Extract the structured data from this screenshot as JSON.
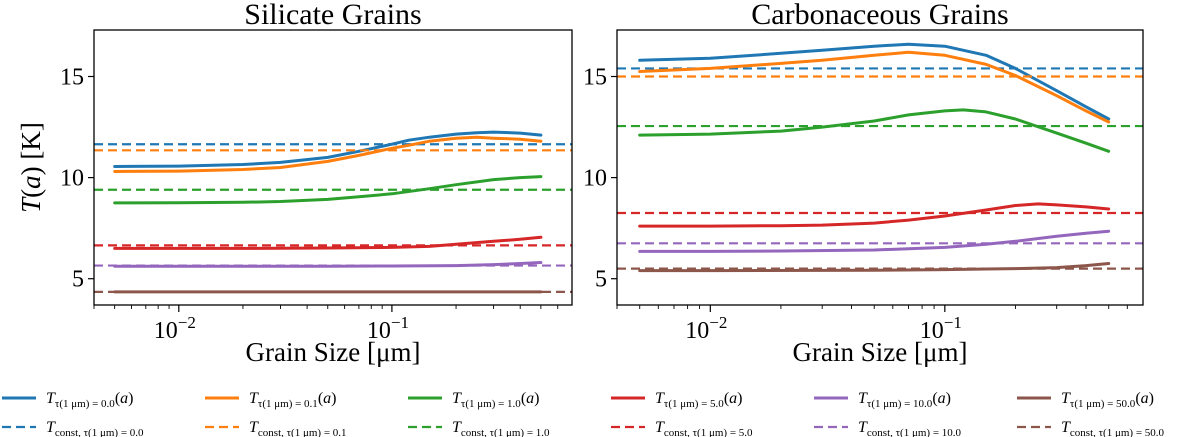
{
  "series_colors": [
    "#1f77b4",
    "#ff7f0e",
    "#2ca02c",
    "#d62728",
    "#9467bd",
    "#8c564b"
  ],
  "chart_data": [
    {
      "type": "line",
      "title": "Silicate Grains",
      "xlabel": "Grain Size [μm]",
      "ylabel": "T(a) [K]",
      "xscale": "log",
      "xlim": [
        0.004,
        0.7
      ],
      "ylim": [
        3.7,
        17.3
      ],
      "yticks": [
        5,
        10,
        15
      ],
      "xticks": [
        0.01,
        0.1
      ],
      "xtick_labels": [
        {
          "base": "10",
          "exp": "−2"
        },
        {
          "base": "10",
          "exp": "−1"
        }
      ],
      "grid": false,
      "series": [
        {
          "tau": "0.0",
          "x": [
            0.005,
            0.01,
            0.02,
            0.03,
            0.05,
            0.07,
            0.1,
            0.12,
            0.15,
            0.2,
            0.25,
            0.3,
            0.4,
            0.5
          ],
          "y": [
            10.55,
            10.57,
            10.65,
            10.75,
            11.0,
            11.3,
            11.65,
            11.85,
            12.0,
            12.15,
            12.22,
            12.25,
            12.2,
            12.1
          ],
          "const": 11.65
        },
        {
          "tau": "0.1",
          "x": [
            0.005,
            0.01,
            0.02,
            0.03,
            0.05,
            0.07,
            0.1,
            0.12,
            0.15,
            0.2,
            0.25,
            0.3,
            0.4,
            0.5
          ],
          "y": [
            10.3,
            10.32,
            10.4,
            10.5,
            10.8,
            11.1,
            11.45,
            11.6,
            11.8,
            11.95,
            12.0,
            11.95,
            11.9,
            11.8
          ],
          "const": 11.35
        },
        {
          "tau": "1.0",
          "x": [
            0.005,
            0.01,
            0.02,
            0.03,
            0.05,
            0.07,
            0.1,
            0.15,
            0.2,
            0.3,
            0.4,
            0.5
          ],
          "y": [
            8.75,
            8.76,
            8.78,
            8.82,
            8.92,
            9.05,
            9.2,
            9.45,
            9.65,
            9.9,
            10.0,
            10.05
          ],
          "const": 9.4
        },
        {
          "tau": "5.0",
          "x": [
            0.005,
            0.01,
            0.02,
            0.05,
            0.1,
            0.15,
            0.2,
            0.3,
            0.4,
            0.5
          ],
          "y": [
            6.5,
            6.5,
            6.5,
            6.52,
            6.55,
            6.6,
            6.7,
            6.85,
            6.95,
            7.05
          ],
          "const": 6.65
        },
        {
          "tau": "10.0",
          "x": [
            0.005,
            0.01,
            0.05,
            0.1,
            0.2,
            0.3,
            0.4,
            0.5
          ],
          "y": [
            5.62,
            5.62,
            5.62,
            5.63,
            5.65,
            5.7,
            5.75,
            5.8
          ],
          "const": 5.65
        },
        {
          "tau": "50.0",
          "x": [
            0.005,
            0.01,
            0.05,
            0.1,
            0.2,
            0.5
          ],
          "y": [
            4.35,
            4.35,
            4.35,
            4.35,
            4.35,
            4.35
          ],
          "const": 4.35
        }
      ]
    },
    {
      "type": "line",
      "title": "Carbonaceous Grains",
      "xlabel": "Grain Size [μm]",
      "ylabel": "",
      "xscale": "log",
      "xlim": [
        0.004,
        0.7
      ],
      "ylim": [
        3.7,
        17.3
      ],
      "yticks": [
        5,
        10,
        15
      ],
      "xticks": [
        0.01,
        0.1
      ],
      "xtick_labels": [
        {
          "base": "10",
          "exp": "−2"
        },
        {
          "base": "10",
          "exp": "−1"
        }
      ],
      "grid": false,
      "series": [
        {
          "tau": "0.0",
          "x": [
            0.005,
            0.01,
            0.02,
            0.03,
            0.05,
            0.07,
            0.1,
            0.15,
            0.2,
            0.3,
            0.4,
            0.5
          ],
          "y": [
            15.8,
            15.9,
            16.15,
            16.3,
            16.5,
            16.6,
            16.5,
            16.05,
            15.4,
            14.3,
            13.5,
            12.9
          ],
          "const": 15.4
        },
        {
          "tau": "0.1",
          "x": [
            0.005,
            0.01,
            0.02,
            0.03,
            0.05,
            0.07,
            0.1,
            0.15,
            0.2,
            0.3,
            0.4,
            0.5
          ],
          "y": [
            15.25,
            15.4,
            15.65,
            15.8,
            16.05,
            16.2,
            16.05,
            15.6,
            15.05,
            14.05,
            13.3,
            12.75
          ],
          "const": 15.0
        },
        {
          "tau": "1.0",
          "x": [
            0.005,
            0.01,
            0.02,
            0.03,
            0.05,
            0.07,
            0.1,
            0.12,
            0.15,
            0.2,
            0.3,
            0.4,
            0.5
          ],
          "y": [
            12.1,
            12.15,
            12.3,
            12.5,
            12.8,
            13.1,
            13.3,
            13.35,
            13.25,
            12.9,
            12.2,
            11.7,
            11.3
          ],
          "const": 12.55
        },
        {
          "tau": "5.0",
          "x": [
            0.005,
            0.01,
            0.02,
            0.03,
            0.05,
            0.07,
            0.1,
            0.15,
            0.2,
            0.25,
            0.3,
            0.4,
            0.5
          ],
          "y": [
            7.6,
            7.6,
            7.62,
            7.65,
            7.75,
            7.9,
            8.1,
            8.4,
            8.62,
            8.7,
            8.65,
            8.55,
            8.45
          ],
          "const": 8.25
        },
        {
          "tau": "10.0",
          "x": [
            0.005,
            0.01,
            0.02,
            0.05,
            0.1,
            0.15,
            0.2,
            0.3,
            0.4,
            0.5
          ],
          "y": [
            6.35,
            6.35,
            6.37,
            6.42,
            6.55,
            6.7,
            6.85,
            7.1,
            7.25,
            7.35
          ],
          "const": 6.75
        },
        {
          "tau": "50.0",
          "x": [
            0.005,
            0.01,
            0.05,
            0.1,
            0.15,
            0.2,
            0.3,
            0.4,
            0.5
          ],
          "y": [
            5.4,
            5.4,
            5.42,
            5.45,
            5.48,
            5.5,
            5.55,
            5.65,
            5.75
          ],
          "const": 5.5
        }
      ]
    }
  ],
  "legend": {
    "row1": [
      {
        "main": "T",
        "sub": "τ(1 μm) = 0.0",
        "tail": "(a)"
      },
      {
        "main": "T",
        "sub": "τ(1 μm) = 0.1",
        "tail": "(a)"
      },
      {
        "main": "T",
        "sub": "τ(1 μm) = 1.0",
        "tail": "(a)"
      },
      {
        "main": "T",
        "sub": "τ(1 μm) = 5.0",
        "tail": "(a)"
      },
      {
        "main": "T",
        "sub": "τ(1 μm) = 10.0",
        "tail": "(a)"
      },
      {
        "main": "T",
        "sub": "τ(1 μm) = 50.0",
        "tail": "(a)"
      }
    ],
    "row2": [
      {
        "main": "T",
        "sub": "const, τ(1 μm) = 0.0"
      },
      {
        "main": "T",
        "sub": "const, τ(1 μm) = 0.1"
      },
      {
        "main": "T",
        "sub": "const, τ(1 μm) = 1.0"
      },
      {
        "main": "T",
        "sub": "const, τ(1 μm) = 5.0"
      },
      {
        "main": "T",
        "sub": "const, τ(1 μm) = 10.0"
      },
      {
        "main": "T",
        "sub": "const, τ(1 μm) = 50.0"
      }
    ]
  }
}
